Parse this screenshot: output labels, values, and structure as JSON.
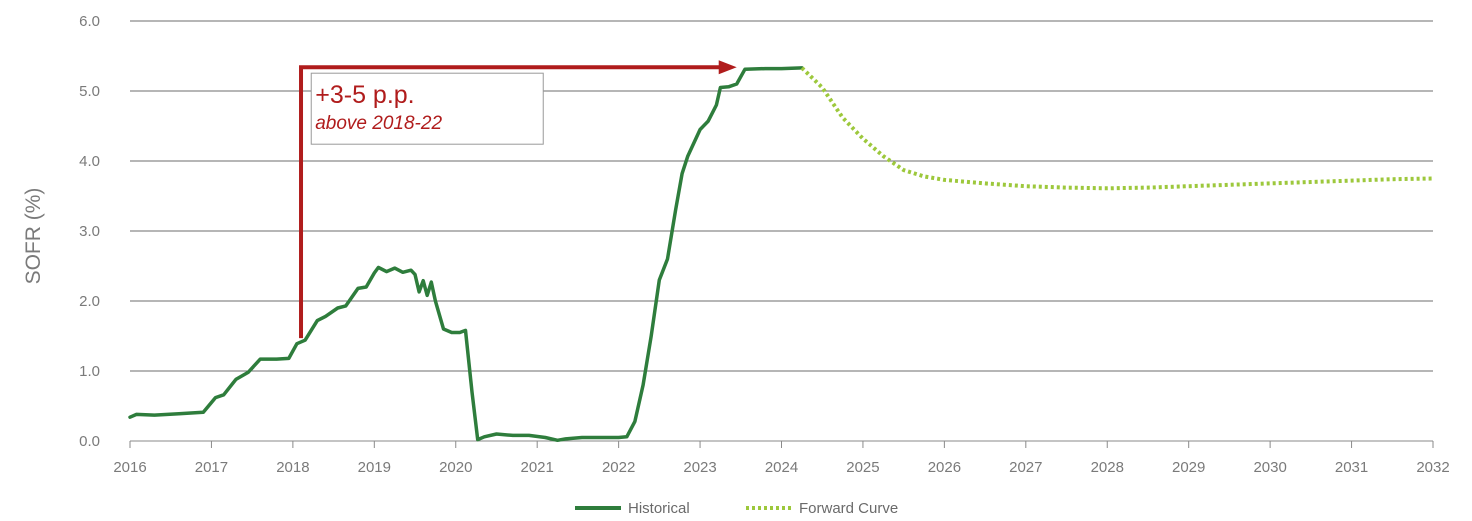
{
  "chart_data": {
    "type": "line",
    "title": "",
    "xlabel": "",
    "ylabel": "SOFR (%)",
    "xlim": [
      2016,
      2032
    ],
    "ylim": [
      0,
      6
    ],
    "x_ticks": [
      "2016",
      "2017",
      "2018",
      "2019",
      "2020",
      "2021",
      "2022",
      "2023",
      "2024",
      "2025",
      "2026",
      "2027",
      "2028",
      "2029",
      "2030",
      "2031",
      "2032"
    ],
    "y_ticks": [
      "0.0",
      "1.0",
      "2.0",
      "3.0",
      "4.0",
      "5.0",
      "6.0"
    ],
    "grid": "horizontal",
    "legend": "bottom-center",
    "series": [
      {
        "name": "Historical",
        "style": "solid",
        "color": "#2e7d3c",
        "points": [
          [
            2016.0,
            0.34
          ],
          [
            2016.08,
            0.38
          ],
          [
            2016.3,
            0.37
          ],
          [
            2016.6,
            0.39
          ],
          [
            2016.9,
            0.41
          ],
          [
            2017.05,
            0.62
          ],
          [
            2017.15,
            0.66
          ],
          [
            2017.3,
            0.88
          ],
          [
            2017.45,
            0.98
          ],
          [
            2017.6,
            1.17
          ],
          [
            2017.8,
            1.17
          ],
          [
            2017.95,
            1.18
          ],
          [
            2018.05,
            1.39
          ],
          [
            2018.15,
            1.44
          ],
          [
            2018.3,
            1.72
          ],
          [
            2018.4,
            1.78
          ],
          [
            2018.55,
            1.9
          ],
          [
            2018.65,
            1.93
          ],
          [
            2018.8,
            2.18
          ],
          [
            2018.9,
            2.2
          ],
          [
            2019.0,
            2.4
          ],
          [
            2019.05,
            2.48
          ],
          [
            2019.15,
            2.42
          ],
          [
            2019.25,
            2.47
          ],
          [
            2019.35,
            2.41
          ],
          [
            2019.45,
            2.44
          ],
          [
            2019.5,
            2.38
          ],
          [
            2019.55,
            2.13
          ],
          [
            2019.6,
            2.29
          ],
          [
            2019.65,
            2.08
          ],
          [
            2019.7,
            2.27
          ],
          [
            2019.75,
            2.0
          ],
          [
            2019.85,
            1.6
          ],
          [
            2019.95,
            1.55
          ],
          [
            2020.05,
            1.55
          ],
          [
            2020.12,
            1.58
          ],
          [
            2020.2,
            0.7
          ],
          [
            2020.27,
            0.02
          ],
          [
            2020.35,
            0.06
          ],
          [
            2020.5,
            0.1
          ],
          [
            2020.7,
            0.08
          ],
          [
            2020.9,
            0.08
          ],
          [
            2021.1,
            0.05
          ],
          [
            2021.25,
            0.01
          ],
          [
            2021.35,
            0.03
          ],
          [
            2021.55,
            0.05
          ],
          [
            2021.8,
            0.05
          ],
          [
            2022.0,
            0.05
          ],
          [
            2022.1,
            0.06
          ],
          [
            2022.2,
            0.28
          ],
          [
            2022.3,
            0.8
          ],
          [
            2022.4,
            1.5
          ],
          [
            2022.5,
            2.3
          ],
          [
            2022.6,
            2.6
          ],
          [
            2022.7,
            3.3
          ],
          [
            2022.78,
            3.82
          ],
          [
            2022.85,
            4.07
          ],
          [
            2023.0,
            4.45
          ],
          [
            2023.1,
            4.57
          ],
          [
            2023.2,
            4.8
          ],
          [
            2023.25,
            5.05
          ],
          [
            2023.35,
            5.06
          ],
          [
            2023.45,
            5.1
          ],
          [
            2023.55,
            5.31
          ],
          [
            2023.8,
            5.32
          ],
          [
            2024.0,
            5.32
          ],
          [
            2024.25,
            5.33
          ]
        ]
      },
      {
        "name": "Forward Curve",
        "style": "dotted",
        "color": "#9dc83c",
        "points": [
          [
            2024.25,
            5.33
          ],
          [
            2024.5,
            5.05
          ],
          [
            2024.75,
            4.62
          ],
          [
            2025.0,
            4.32
          ],
          [
            2025.25,
            4.07
          ],
          [
            2025.5,
            3.87
          ],
          [
            2025.75,
            3.78
          ],
          [
            2026.0,
            3.73
          ],
          [
            2026.5,
            3.68
          ],
          [
            2027.0,
            3.64
          ],
          [
            2027.5,
            3.62
          ],
          [
            2028.0,
            3.61
          ],
          [
            2028.5,
            3.62
          ],
          [
            2029.0,
            3.64
          ],
          [
            2029.5,
            3.66
          ],
          [
            2030.0,
            3.68
          ],
          [
            2030.5,
            3.7
          ],
          [
            2031.0,
            3.72
          ],
          [
            2031.5,
            3.74
          ],
          [
            2032.0,
            3.75
          ]
        ]
      }
    ],
    "annotations": [
      {
        "text": "+3-5 p.p.",
        "subtext": "above 2018-22",
        "color": "#b01c1c",
        "arrow_from": [
          2018.1,
          1.47
        ],
        "arrow_corner": [
          2018.1,
          5.34
        ],
        "arrow_to": [
          2023.45,
          5.34
        ],
        "box_anchor": [
          2018.25,
          5.34
        ]
      }
    ]
  }
}
